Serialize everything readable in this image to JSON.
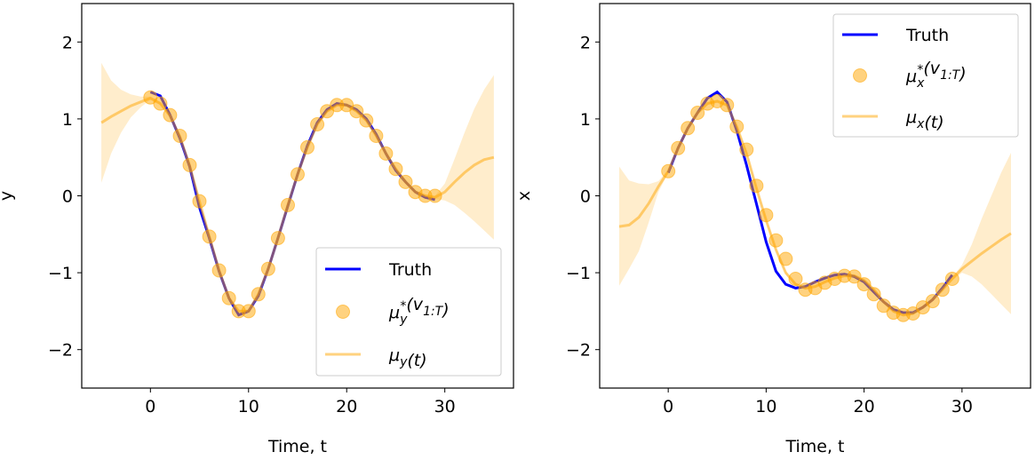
{
  "chart_data": [
    {
      "type": "line",
      "panel": "left",
      "xlabel": "Time, t",
      "ylabel": "y",
      "xlim": [
        -7,
        37
      ],
      "ylim": [
        -2.5,
        2.5
      ],
      "xticks": [
        0,
        10,
        20,
        30
      ],
      "yticks": [
        -2,
        -1,
        0,
        1,
        2
      ],
      "xtick_labels": [
        "0",
        "10",
        "20",
        "30"
      ],
      "ytick_labels": [
        "−2",
        "−1",
        "0",
        "1",
        "2"
      ],
      "grid": false,
      "legend_position": "lower-right",
      "legend": [
        {
          "label": "Truth",
          "kind": "line",
          "color": "#0000ff"
        },
        {
          "label": "μ_y^*(v_{1:T})",
          "kind": "marker",
          "color": "#ffa500"
        },
        {
          "label": "μ_y(t)",
          "kind": "line",
          "color": "#ffa500"
        }
      ],
      "series": [
        {
          "name": "Truth",
          "color": "#0000ff",
          "x": [
            0,
            1,
            2,
            3,
            4,
            5,
            6,
            7,
            8,
            9,
            10,
            11,
            12,
            13,
            14,
            15,
            16,
            17,
            18,
            19,
            20,
            21,
            22,
            23,
            24,
            25,
            26,
            27,
            28,
            29
          ],
          "values": [
            1.35,
            1.3,
            1.05,
            0.75,
            0.38,
            -0.15,
            -0.55,
            -0.98,
            -1.33,
            -1.55,
            -1.5,
            -1.3,
            -0.95,
            -0.55,
            -0.13,
            0.28,
            0.65,
            0.95,
            1.12,
            1.2,
            1.18,
            1.12,
            1.0,
            0.8,
            0.55,
            0.33,
            0.18,
            0.05,
            -0.02,
            -0.05
          ]
        },
        {
          "name": "μ_y^*(v_{1:T})",
          "color": "#ffa500",
          "x": [
            0,
            1,
            2,
            3,
            4,
            5,
            6,
            7,
            8,
            9,
            10,
            11,
            12,
            13,
            14,
            15,
            16,
            17,
            18,
            19,
            20,
            21,
            22,
            23,
            24,
            25,
            26,
            27,
            28,
            29
          ],
          "values": [
            1.28,
            1.2,
            1.05,
            0.78,
            0.4,
            -0.07,
            -0.53,
            -0.97,
            -1.33,
            -1.5,
            -1.5,
            -1.28,
            -0.95,
            -0.55,
            -0.12,
            0.28,
            0.63,
            0.93,
            1.1,
            1.18,
            1.18,
            1.1,
            0.98,
            0.78,
            0.55,
            0.35,
            0.18,
            0.05,
            0.0,
            0.0
          ]
        },
        {
          "name": "μ_y(t)",
          "color": "#ffa500",
          "x": [
            -5,
            -4,
            -3,
            -2,
            -1,
            0,
            1,
            2,
            3,
            4,
            5,
            6,
            7,
            8,
            9,
            10,
            11,
            12,
            13,
            14,
            15,
            16,
            17,
            18,
            19,
            20,
            21,
            22,
            23,
            24,
            25,
            26,
            27,
            28,
            29,
            30,
            31,
            32,
            33,
            34,
            35
          ],
          "values": [
            0.95,
            1.03,
            1.1,
            1.17,
            1.22,
            1.27,
            1.2,
            1.04,
            0.77,
            0.39,
            -0.07,
            -0.53,
            -0.97,
            -1.33,
            -1.5,
            -1.5,
            -1.28,
            -0.95,
            -0.55,
            -0.12,
            0.28,
            0.63,
            0.93,
            1.1,
            1.18,
            1.18,
            1.1,
            0.98,
            0.78,
            0.55,
            0.35,
            0.18,
            0.05,
            0.0,
            -0.02,
            0.05,
            0.18,
            0.3,
            0.4,
            0.47,
            0.5
          ],
          "lower": [
            0.17,
            0.55,
            0.82,
            1.02,
            1.15,
            1.25,
            1.18,
            1.02,
            0.75,
            0.37,
            -0.09,
            -0.55,
            -0.99,
            -1.35,
            -1.52,
            -1.52,
            -1.3,
            -0.97,
            -0.57,
            -0.14,
            0.26,
            0.61,
            0.91,
            1.08,
            1.16,
            1.16,
            1.08,
            0.96,
            0.76,
            0.53,
            0.33,
            0.16,
            0.03,
            -0.02,
            -0.04,
            -0.06,
            -0.12,
            -0.22,
            -0.33,
            -0.45,
            -0.57
          ],
          "upper": [
            1.73,
            1.5,
            1.38,
            1.32,
            1.29,
            1.29,
            1.22,
            1.06,
            0.79,
            0.41,
            -0.05,
            -0.51,
            -0.95,
            -1.31,
            -1.48,
            -1.48,
            -1.26,
            -0.93,
            -0.53,
            -0.1,
            0.3,
            0.65,
            0.95,
            1.12,
            1.2,
            1.2,
            1.12,
            1.0,
            0.8,
            0.57,
            0.37,
            0.2,
            0.07,
            0.02,
            0.0,
            0.16,
            0.48,
            0.82,
            1.13,
            1.38,
            1.57
          ]
        }
      ]
    },
    {
      "type": "line",
      "panel": "right",
      "xlabel": "Time, t",
      "ylabel": "x",
      "xlim": [
        -7,
        37
      ],
      "ylim": [
        -2.5,
        2.5
      ],
      "xticks": [
        0,
        10,
        20,
        30
      ],
      "yticks": [
        -2,
        -1,
        0,
        1,
        2
      ],
      "xtick_labels": [
        "0",
        "10",
        "20",
        "30"
      ],
      "ytick_labels": [
        "−2",
        "−1",
        "0",
        "1",
        "2"
      ],
      "grid": false,
      "legend_position": "upper-right",
      "legend": [
        {
          "label": "Truth",
          "kind": "line",
          "color": "#0000ff"
        },
        {
          "label": "μ_x^*(v_{1:T})",
          "kind": "marker",
          "color": "#ffa500"
        },
        {
          "label": "μ_x(t)",
          "kind": "line",
          "color": "#ffa500"
        }
      ],
      "series": [
        {
          "name": "Truth",
          "color": "#0000ff",
          "x": [
            0,
            1,
            2,
            3,
            4,
            5,
            6,
            7,
            8,
            9,
            10,
            11,
            12,
            13,
            14,
            15,
            16,
            17,
            18,
            19,
            20,
            21,
            22,
            23,
            24,
            25,
            26,
            27,
            28,
            29
          ],
          "values": [
            0.3,
            0.62,
            0.88,
            1.08,
            1.27,
            1.35,
            1.22,
            0.85,
            0.4,
            -0.1,
            -0.6,
            -0.98,
            -1.15,
            -1.2,
            -1.18,
            -1.12,
            -1.07,
            -1.03,
            -1.02,
            -1.05,
            -1.12,
            -1.25,
            -1.38,
            -1.48,
            -1.52,
            -1.52,
            -1.45,
            -1.35,
            -1.2,
            -1.03
          ]
        },
        {
          "name": "μ_x^*(v_{1:T})",
          "color": "#ffa500",
          "x": [
            0,
            1,
            2,
            3,
            4,
            5,
            6,
            7,
            8,
            9,
            10,
            11,
            12,
            13,
            14,
            15,
            16,
            17,
            18,
            19,
            20,
            21,
            22,
            23,
            24,
            25,
            26,
            27,
            28,
            29
          ],
          "values": [
            0.32,
            0.62,
            0.88,
            1.08,
            1.2,
            1.23,
            1.18,
            0.9,
            0.6,
            0.13,
            -0.25,
            -0.58,
            -0.82,
            -1.08,
            -1.22,
            -1.2,
            -1.13,
            -1.08,
            -1.04,
            -1.05,
            -1.15,
            -1.28,
            -1.43,
            -1.52,
            -1.55,
            -1.53,
            -1.45,
            -1.37,
            -1.22,
            -1.08
          ]
        },
        {
          "name": "μ_x(t)",
          "color": "#ffa500",
          "x": [
            -5,
            -4,
            -3,
            -2,
            -1,
            0,
            1,
            2,
            3,
            4,
            5,
            6,
            7,
            8,
            9,
            10,
            11,
            12,
            13,
            14,
            15,
            16,
            17,
            18,
            19,
            20,
            21,
            22,
            23,
            24,
            25,
            26,
            27,
            28,
            29,
            30,
            31,
            32,
            33,
            34,
            35
          ],
          "values": [
            -0.4,
            -0.38,
            -0.28,
            -0.1,
            0.12,
            0.32,
            0.62,
            0.88,
            1.08,
            1.2,
            1.23,
            1.18,
            0.9,
            0.55,
            0.1,
            -0.32,
            -0.7,
            -1.0,
            -1.15,
            -1.2,
            -1.18,
            -1.12,
            -1.07,
            -1.04,
            -1.04,
            -1.1,
            -1.22,
            -1.38,
            -1.5,
            -1.55,
            -1.53,
            -1.45,
            -1.35,
            -1.22,
            -1.08,
            -0.95,
            -0.85,
            -0.75,
            -0.66,
            -0.57,
            -0.49
          ],
          "lower": [
            -1.17,
            -0.95,
            -0.72,
            -0.35,
            0.05,
            0.3,
            0.6,
            0.86,
            1.06,
            1.18,
            1.21,
            1.16,
            0.88,
            0.53,
            0.08,
            -0.34,
            -0.72,
            -1.02,
            -1.17,
            -1.22,
            -1.2,
            -1.14,
            -1.09,
            -1.06,
            -1.06,
            -1.12,
            -1.24,
            -1.4,
            -1.52,
            -1.57,
            -1.55,
            -1.47,
            -1.37,
            -1.24,
            -1.1,
            -1.0,
            -1.05,
            -1.15,
            -1.28,
            -1.41,
            -1.54
          ],
          "upper": [
            0.38,
            0.2,
            0.16,
            0.15,
            0.19,
            0.34,
            0.64,
            0.9,
            1.1,
            1.22,
            1.25,
            1.2,
            0.92,
            0.57,
            0.12,
            -0.3,
            -0.68,
            -0.98,
            -1.13,
            -1.18,
            -1.16,
            -1.1,
            -1.05,
            -1.02,
            -1.02,
            -1.08,
            -1.2,
            -1.36,
            -1.48,
            -1.53,
            -1.51,
            -1.43,
            -1.33,
            -1.2,
            -1.06,
            -0.9,
            -0.63,
            -0.3,
            0.0,
            0.3,
            0.56
          ]
        }
      ]
    }
  ]
}
